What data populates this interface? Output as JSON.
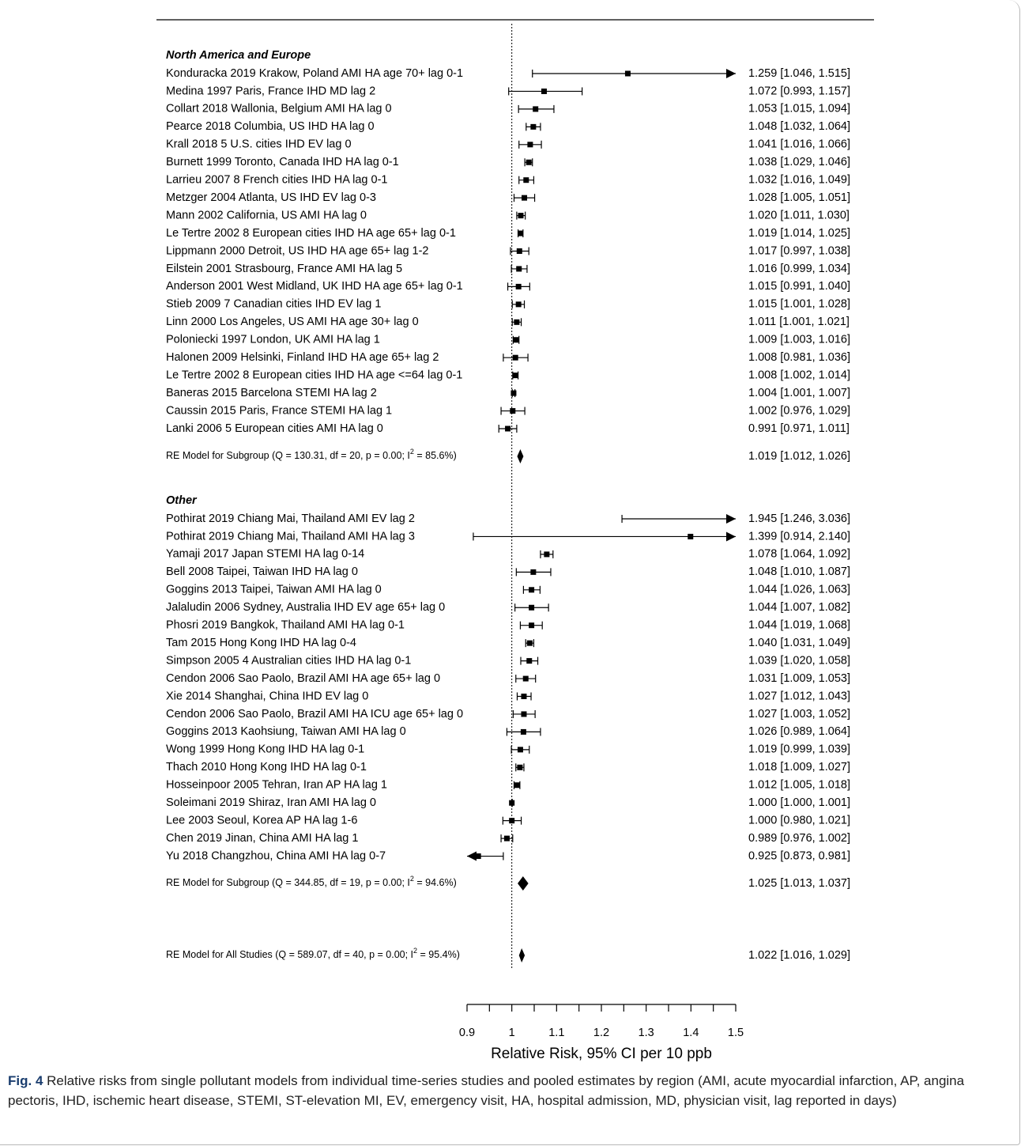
{
  "chart_data": {
    "type": "forest",
    "xlabel": "Relative Risk, 95% CI per 10 ppb",
    "xlim": [
      0.9,
      1.5
    ],
    "ticks": [
      0.9,
      0.95,
      1.0,
      1.05,
      1.1,
      1.15,
      1.2,
      1.25,
      1.3,
      1.35,
      1.4,
      1.45,
      1.5
    ],
    "tick_labels": [
      "0.9",
      "1",
      "1.1",
      "1.2",
      "1.3",
      "1.4",
      "1.5"
    ],
    "tick_label_values": [
      0.9,
      1.0,
      1.1,
      1.2,
      1.3,
      1.4,
      1.5
    ],
    "reference_line": 1.0,
    "groups": [
      {
        "title": "North America and Europe",
        "studies": [
          {
            "label": "Konduracka 2019 Krakow, Poland AMI HA age 70+ lag 0-1",
            "est": 1.259,
            "lo": 1.046,
            "hi": 1.515,
            "ci": "1.259 [1.046, 1.515]"
          },
          {
            "label": "Medina 1997 Paris, France IHD MD lag 2",
            "est": 1.072,
            "lo": 0.993,
            "hi": 1.157,
            "ci": "1.072 [0.993, 1.157]"
          },
          {
            "label": "Collart 2018 Wallonia, Belgium AMI HA lag 0",
            "est": 1.053,
            "lo": 1.015,
            "hi": 1.094,
            "ci": "1.053 [1.015, 1.094]"
          },
          {
            "label": "Pearce 2018 Columbia, US IHD HA lag 0",
            "est": 1.048,
            "lo": 1.032,
            "hi": 1.064,
            "ci": "1.048 [1.032, 1.064]"
          },
          {
            "label": "Krall 2018 5 U.S. cities IHD EV lag 0",
            "est": 1.041,
            "lo": 1.016,
            "hi": 1.066,
            "ci": "1.041 [1.016, 1.066]"
          },
          {
            "label": "Burnett 1999 Toronto, Canada IHD HA lag 0-1",
            "est": 1.038,
            "lo": 1.029,
            "hi": 1.046,
            "ci": "1.038 [1.029, 1.046]"
          },
          {
            "label": "Larrieu 2007 8 French cities IHD HA lag 0-1",
            "est": 1.032,
            "lo": 1.016,
            "hi": 1.049,
            "ci": "1.032 [1.016, 1.049]"
          },
          {
            "label": "Metzger 2004 Atlanta, US IHD EV lag 0-3",
            "est": 1.028,
            "lo": 1.005,
            "hi": 1.051,
            "ci": "1.028 [1.005, 1.051]"
          },
          {
            "label": "Mann 2002 California, US AMI HA lag 0",
            "est": 1.02,
            "lo": 1.011,
            "hi": 1.03,
            "ci": "1.020 [1.011, 1.030]"
          },
          {
            "label": "Le Tertre 2002 8 European cities IHD HA age 65+ lag 0-1",
            "est": 1.019,
            "lo": 1.014,
            "hi": 1.025,
            "ci": "1.019 [1.014, 1.025]"
          },
          {
            "label": "Lippmann 2000 Detroit, US IHD HA age 65+ lag 1-2",
            "est": 1.017,
            "lo": 0.997,
            "hi": 1.038,
            "ci": "1.017 [0.997, 1.038]"
          },
          {
            "label": "Eilstein 2001 Strasbourg, France AMI HA lag 5",
            "est": 1.016,
            "lo": 0.999,
            "hi": 1.034,
            "ci": "1.016 [0.999, 1.034]"
          },
          {
            "label": "Anderson 2001 West Midland, UK IHD HA age 65+ lag 0-1",
            "est": 1.015,
            "lo": 0.991,
            "hi": 1.04,
            "ci": "1.015 [0.991, 1.040]"
          },
          {
            "label": "Stieb 2009 7 Canadian cities IHD EV lag 1",
            "est": 1.015,
            "lo": 1.001,
            "hi": 1.028,
            "ci": "1.015 [1.001, 1.028]"
          },
          {
            "label": "Linn 2000 Los Angeles, US AMI HA age 30+ lag 0",
            "est": 1.011,
            "lo": 1.001,
            "hi": 1.021,
            "ci": "1.011 [1.001, 1.021]"
          },
          {
            "label": "Poloniecki 1997 London, UK AMI HA lag 1",
            "est": 1.009,
            "lo": 1.003,
            "hi": 1.016,
            "ci": "1.009 [1.003, 1.016]"
          },
          {
            "label": "Halonen 2009 Helsinki, Finland IHD HA age 65+ lag 2",
            "est": 1.008,
            "lo": 0.981,
            "hi": 1.036,
            "ci": "1.008 [0.981, 1.036]"
          },
          {
            "label": "Le Tertre 2002 8 European cities IHD HA age <=64 lag 0-1",
            "est": 1.008,
            "lo": 1.002,
            "hi": 1.014,
            "ci": "1.008 [1.002, 1.014]"
          },
          {
            "label": "Baneras 2015 Barcelona STEMI HA lag 2",
            "est": 1.004,
            "lo": 1.001,
            "hi": 1.007,
            "ci": "1.004 [1.001, 1.007]"
          },
          {
            "label": "Caussin 2015 Paris, France STEMI HA lag 1",
            "est": 1.002,
            "lo": 0.976,
            "hi": 1.029,
            "ci": "1.002 [0.976, 1.029]"
          },
          {
            "label": "Lanki 2006 5 European cities AMI HA lag 0",
            "est": 0.991,
            "lo": 0.971,
            "hi": 1.011,
            "ci": "0.991 [0.971, 1.011]"
          }
        ],
        "summary": {
          "label_pre": "RE Model for Subgroup (Q = 130.31, df = 20, p = 0.00; I",
          "label_post": " = 85.6%)",
          "sup": "2",
          "est": 1.019,
          "lo": 1.012,
          "hi": 1.026,
          "ci": "1.019 [1.012, 1.026]"
        }
      },
      {
        "title": "Other",
        "studies": [
          {
            "label": "Pothirat 2019 Chiang Mai, Thailand AMI EV lag 2",
            "est": 1.945,
            "lo": 1.246,
            "hi": 3.036,
            "ci": "1.945 [1.246, 3.036]"
          },
          {
            "label": "Pothirat 2019 Chiang Mai, Thailand AMI HA lag 3",
            "est": 1.399,
            "lo": 0.914,
            "hi": 2.14,
            "ci": "1.399 [0.914, 2.140]"
          },
          {
            "label": "Yamaji 2017 Japan STEMI HA lag 0-14",
            "est": 1.078,
            "lo": 1.064,
            "hi": 1.092,
            "ci": "1.078 [1.064, 1.092]"
          },
          {
            "label": "Bell 2008 Taipei, Taiwan IHD HA lag 0",
            "est": 1.048,
            "lo": 1.01,
            "hi": 1.087,
            "ci": "1.048 [1.010, 1.087]"
          },
          {
            "label": "Goggins 2013 Taipei, Taiwan AMI HA lag 0",
            "est": 1.044,
            "lo": 1.026,
            "hi": 1.063,
            "ci": "1.044 [1.026, 1.063]"
          },
          {
            "label": "Jalaludin 2006 Sydney, Australia IHD EV age 65+ lag 0",
            "est": 1.044,
            "lo": 1.007,
            "hi": 1.082,
            "ci": "1.044 [1.007, 1.082]"
          },
          {
            "label": "Phosri 2019 Bangkok, Thailand AMI HA lag 0-1",
            "est": 1.044,
            "lo": 1.019,
            "hi": 1.068,
            "ci": "1.044 [1.019, 1.068]"
          },
          {
            "label": "Tam 2015 Hong Kong IHD HA lag 0-4",
            "est": 1.04,
            "lo": 1.031,
            "hi": 1.049,
            "ci": "1.040 [1.031, 1.049]"
          },
          {
            "label": "Simpson 2005 4 Australian cities IHD HA lag 0-1",
            "est": 1.039,
            "lo": 1.02,
            "hi": 1.058,
            "ci": "1.039 [1.020, 1.058]"
          },
          {
            "label": "Cendon 2006 Sao Paolo, Brazil AMI HA age 65+ lag 0",
            "est": 1.031,
            "lo": 1.009,
            "hi": 1.053,
            "ci": "1.031 [1.009, 1.053]"
          },
          {
            "label": "Xie 2014 Shanghai, China IHD EV lag 0",
            "est": 1.027,
            "lo": 1.012,
            "hi": 1.043,
            "ci": "1.027 [1.012, 1.043]"
          },
          {
            "label": "Cendon 2006 Sao Paolo, Brazil AMI HA ICU age 65+ lag 0",
            "est": 1.027,
            "lo": 1.003,
            "hi": 1.052,
            "ci": "1.027 [1.003, 1.052]"
          },
          {
            "label": "Goggins 2013 Kaohsiung, Taiwan AMI HA lag 0",
            "est": 1.026,
            "lo": 0.989,
            "hi": 1.064,
            "ci": "1.026 [0.989, 1.064]"
          },
          {
            "label": "Wong 1999 Hong Kong IHD HA lag 0-1",
            "est": 1.019,
            "lo": 0.999,
            "hi": 1.039,
            "ci": "1.019 [0.999, 1.039]"
          },
          {
            "label": "Thach 2010 Hong Kong IHD HA lag 0-1",
            "est": 1.018,
            "lo": 1.009,
            "hi": 1.027,
            "ci": "1.018 [1.009, 1.027]"
          },
          {
            "label": "Hosseinpoor 2005 Tehran, Iran AP HA lag 1",
            "est": 1.012,
            "lo": 1.005,
            "hi": 1.018,
            "ci": "1.012 [1.005, 1.018]"
          },
          {
            "label": "Soleimani 2019 Shiraz, Iran AMI HA lag 0",
            "est": 1.0,
            "lo": 1.0,
            "hi": 1.001,
            "ci": "1.000 [1.000, 1.001]"
          },
          {
            "label": "Lee 2003 Seoul, Korea AP HA lag 1-6",
            "est": 1.0,
            "lo": 0.98,
            "hi": 1.021,
            "ci": "1.000 [0.980, 1.021]"
          },
          {
            "label": "Chen 2019 Jinan, China AMI HA lag 1",
            "est": 0.989,
            "lo": 0.976,
            "hi": 1.002,
            "ci": "0.989 [0.976, 1.002]"
          },
          {
            "label": "Yu 2018 Changzhou, China AMI HA lag 0-7",
            "est": 0.925,
            "lo": 0.873,
            "hi": 0.981,
            "ci": "0.925 [0.873, 0.981]"
          }
        ],
        "summary": {
          "label_pre": "RE Model for Subgroup (Q = 344.85, df = 19, p = 0.00; I",
          "label_post": " = 94.6%)",
          "sup": "2",
          "est": 1.025,
          "lo": 1.013,
          "hi": 1.037,
          "ci": "1.025 [1.013, 1.037]"
        }
      }
    ],
    "overall": {
      "label_pre": "RE Model for All Studies (Q = 589.07, df = 40, p = 0.00; I",
      "label_post": " = 95.4%)",
      "sup": "2",
      "est": 1.022,
      "lo": 1.016,
      "hi": 1.029,
      "ci": "1.022 [1.016, 1.029]"
    }
  },
  "caption": {
    "label": "Fig. 4",
    "text": " Relative risks from single pollutant models from individual time-series studies and pooled estimates by region (AMI, acute myocardial infarction, AP, angina pectoris, IHD, ischemic heart disease, STEMI, ST-elevation MI, EV, emergency visit, HA, hospital admission, MD, physician visit, lag reported in days)"
  },
  "colors": {
    "ink": "#000000",
    "caption_label": "#1a3d6e",
    "frame": "#b8b8b8"
  }
}
